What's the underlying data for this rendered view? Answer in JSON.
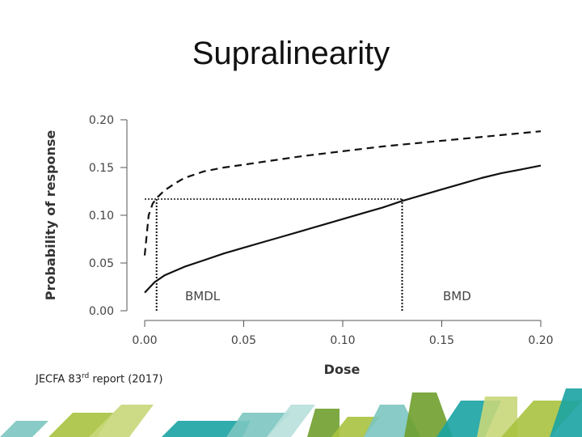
{
  "slide": {
    "title": "Supralinearity",
    "footnote_pre": "JECFA 83",
    "footnote_sup": "rd",
    "footnote_post": " report (2017)"
  },
  "chart_data": {
    "type": "line",
    "xlabel": "Dose",
    "ylabel": "Probability of response",
    "xlim": [
      0,
      0.2
    ],
    "ylim": [
      0,
      0.2
    ],
    "xticks": [
      0,
      0.05,
      0.1,
      0.15,
      0.2
    ],
    "yticks": [
      0,
      0.05,
      0.1,
      0.15,
      0.2
    ],
    "xtick_labels": [
      "0.00",
      "0.05",
      "0.10",
      "0.15",
      "0.20"
    ],
    "ytick_labels": [
      "0.00",
      "0.05",
      "0.10",
      "0.15",
      "0.20"
    ],
    "grid": false,
    "series": [
      {
        "style": "solid",
        "x": [
          0,
          0.005,
          0.01,
          0.02,
          0.03,
          0.04,
          0.05,
          0.06,
          0.07,
          0.08,
          0.09,
          0.1,
          0.11,
          0.12,
          0.13,
          0.14,
          0.15,
          0.16,
          0.17,
          0.18,
          0.19,
          0.2
        ],
        "y": [
          0.019,
          0.03,
          0.037,
          0.046,
          0.053,
          0.06,
          0.066,
          0.072,
          0.078,
          0.084,
          0.09,
          0.096,
          0.102,
          0.108,
          0.115,
          0.121,
          0.127,
          0.133,
          0.139,
          0.144,
          0.148,
          0.152
        ]
      },
      {
        "style": "dashed",
        "x": [
          0,
          0.002,
          0.004,
          0.006,
          0.01,
          0.015,
          0.02,
          0.03,
          0.04,
          0.05,
          0.06,
          0.08,
          0.1,
          0.12,
          0.14,
          0.16,
          0.18,
          0.2
        ],
        "y": [
          0.058,
          0.1,
          0.112,
          0.118,
          0.126,
          0.133,
          0.139,
          0.146,
          0.15,
          0.153,
          0.156,
          0.162,
          0.167,
          0.172,
          0.176,
          0.18,
          0.184,
          0.188
        ]
      }
    ],
    "reference_level": 0.117,
    "annotations": [
      {
        "text": "BMDL",
        "x": 0.006
      },
      {
        "text": "BMD",
        "x": 0.13
      }
    ]
  },
  "decoration": {
    "colors": [
      "#6f9e2e",
      "#a9c23f",
      "#c8d77a",
      "#1aa3a3",
      "#7cc5c0",
      "#b8e0dc"
    ]
  }
}
